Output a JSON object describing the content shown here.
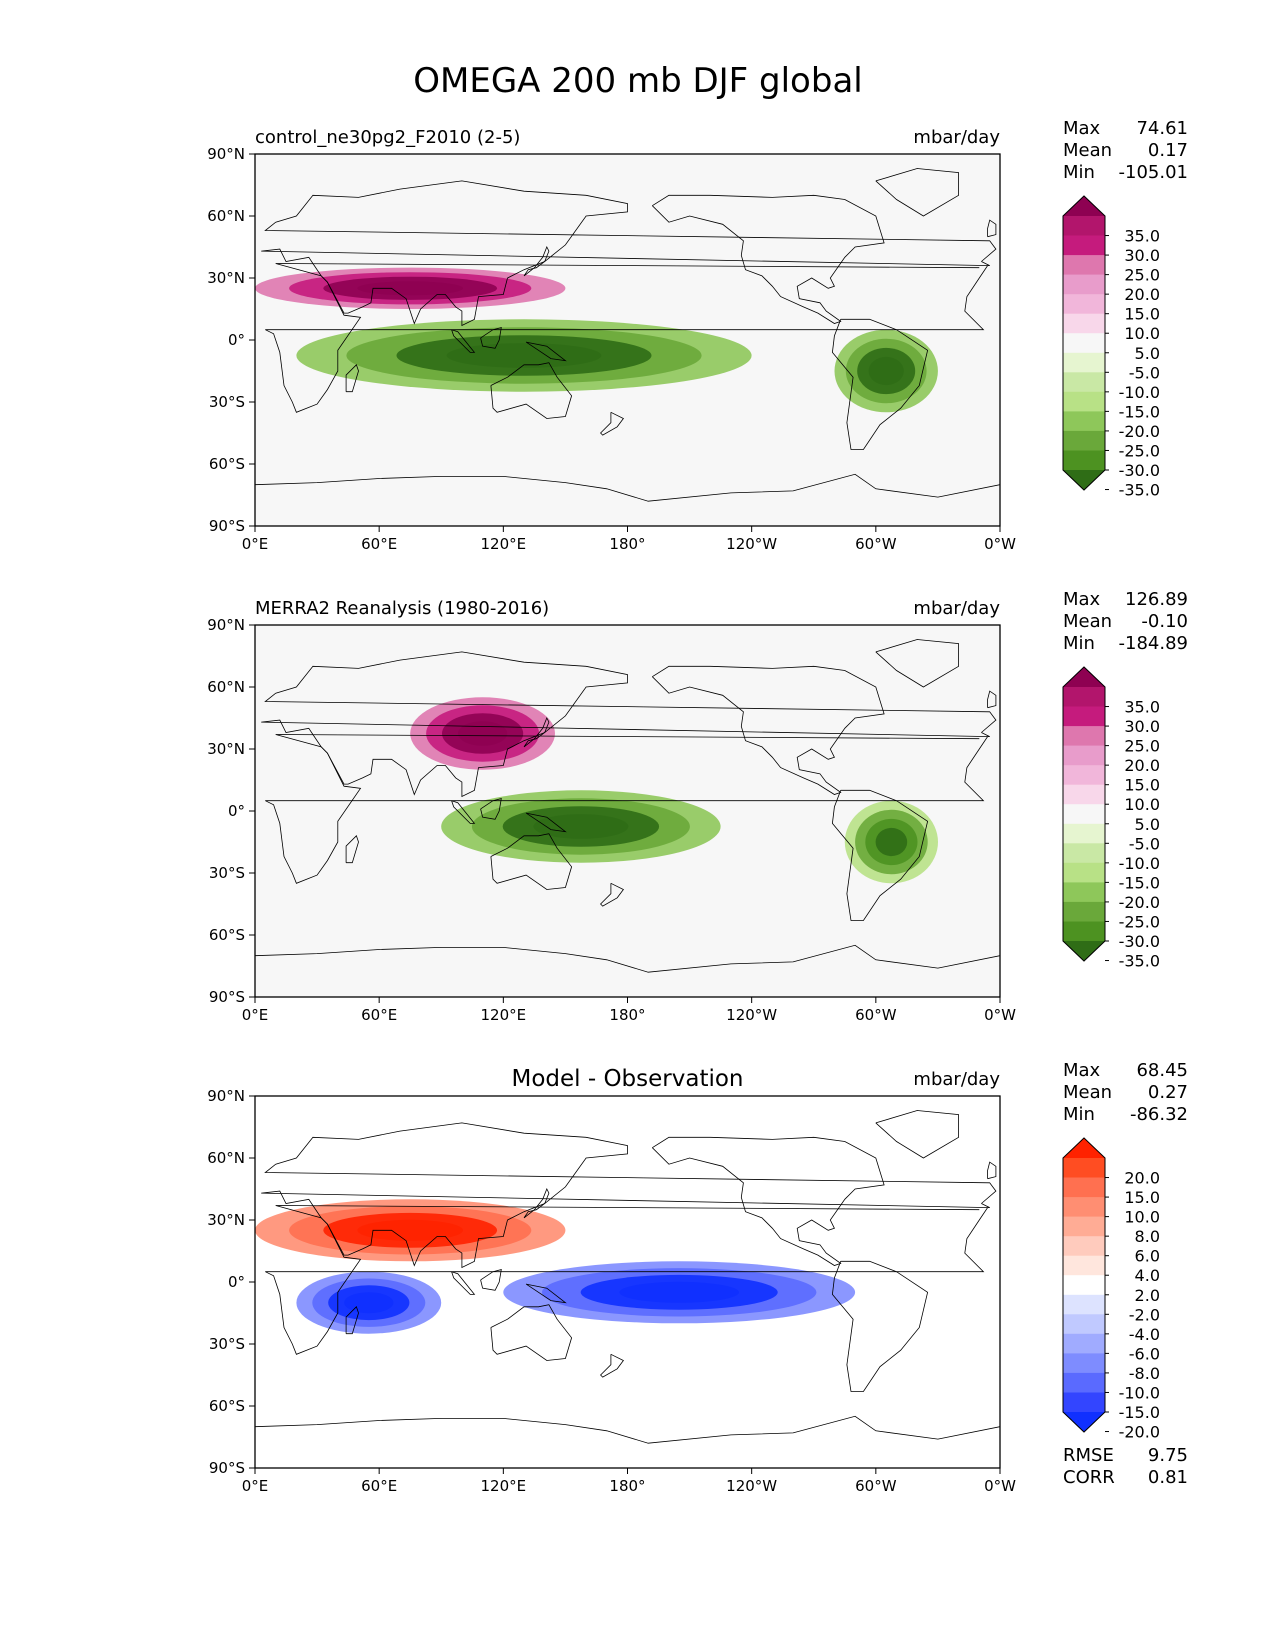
{
  "title": "OMEGA 200 mb DJF global",
  "x_ticks": [
    "0°E",
    "60°E",
    "120°E",
    "180°",
    "120°W",
    "60°W",
    "0°W"
  ],
  "y_ticks": [
    "90°N",
    "60°N",
    "30°N",
    "0°",
    "30°S",
    "60°S",
    "90°S"
  ],
  "colors": {
    "land_outline": "#000000",
    "background": "#f7f7f7"
  },
  "chart_data": [
    {
      "type": "heatmap",
      "title": "control_ne30pg2_F2010 (2-5)",
      "title_position": "left",
      "units": "mbar/day",
      "xlim": [
        0,
        360
      ],
      "ylim": [
        -90,
        90
      ],
      "stats": [
        {
          "label": "Max",
          "value": "74.61"
        },
        {
          "label": "Mean",
          "value": "0.17"
        },
        {
          "label": "Min",
          "value": "-105.01"
        }
      ],
      "colorbar": {
        "levels": [
          "35.0",
          "30.0",
          "25.0",
          "20.0",
          "15.0",
          "10.0",
          "5.0",
          "-5.0",
          "-10.0",
          "-15.0",
          "-20.0",
          "-25.0",
          "-30.0",
          "-35.0"
        ],
        "colors": [
          "#8e0152",
          "#b2156c",
          "#c51b7d",
          "#de77ae",
          "#e89ccb",
          "#f1b6da",
          "#f8d7ea",
          "#f7f7f7",
          "#e6f5d0",
          "#c9e8a5",
          "#b8e186",
          "#8ec75a",
          "#6aa83a",
          "#4d9221",
          "#2f6d16"
        ]
      },
      "features": [
        {
          "label": "subtropical jet descent band",
          "sign": "positive",
          "lon_range": [
            0,
            150
          ],
          "lat_range": [
            15,
            35
          ],
          "level": 35
        },
        {
          "label": "ITCZ ascent band",
          "sign": "negative",
          "lon_range": [
            20,
            240
          ],
          "lat_range": [
            -25,
            10
          ],
          "level": -35
        },
        {
          "label": "South America ascent",
          "sign": "negative",
          "lon_range": [
            280,
            330
          ],
          "lat_range": [
            -35,
            5
          ],
          "level": -35
        }
      ]
    },
    {
      "type": "heatmap",
      "title": "MERRA2 Reanalysis (1980-2016)",
      "title_position": "left",
      "units": "mbar/day",
      "xlim": [
        0,
        360
      ],
      "ylim": [
        -90,
        90
      ],
      "stats": [
        {
          "label": "Max",
          "value": "126.89"
        },
        {
          "label": "Mean",
          "value": "-0.10"
        },
        {
          "label": "Min",
          "value": "-184.89"
        }
      ],
      "colorbar": {
        "levels": [
          "35.0",
          "30.0",
          "25.0",
          "20.0",
          "15.0",
          "10.0",
          "5.0",
          "-5.0",
          "-10.0",
          "-15.0",
          "-20.0",
          "-25.0",
          "-30.0",
          "-35.0"
        ],
        "colors": [
          "#8e0152",
          "#b2156c",
          "#c51b7d",
          "#de77ae",
          "#e89ccb",
          "#f1b6da",
          "#f8d7ea",
          "#f7f7f7",
          "#e6f5d0",
          "#c9e8a5",
          "#b8e186",
          "#8ec75a",
          "#6aa83a",
          "#4d9221",
          "#2f6d16"
        ]
      },
      "features": [
        {
          "label": "Tibetan plateau descent",
          "sign": "positive",
          "lon_range": [
            75,
            145
          ],
          "lat_range": [
            20,
            55
          ],
          "level": 35
        },
        {
          "label": "Maritime continent ascent",
          "sign": "negative",
          "lon_range": [
            90,
            225
          ],
          "lat_range": [
            -25,
            10
          ],
          "level": -35
        },
        {
          "label": "South America ascent",
          "sign": "negative",
          "lon_range": [
            285,
            330
          ],
          "lat_range": [
            -35,
            5
          ],
          "level": -30
        }
      ]
    },
    {
      "type": "heatmap",
      "title": "Model - Observation",
      "title_position": "center",
      "units": "mbar/day",
      "xlim": [
        0,
        360
      ],
      "ylim": [
        -90,
        90
      ],
      "stats": [
        {
          "label": "Max",
          "value": "68.45"
        },
        {
          "label": "Mean",
          "value": "0.27"
        },
        {
          "label": "Min",
          "value": "-86.32"
        }
      ],
      "metrics": [
        {
          "label": "RMSE",
          "value": "9.75"
        },
        {
          "label": "CORR",
          "value": "0.81"
        }
      ],
      "colorbar": {
        "levels": [
          "20.0",
          "15.0",
          "10.0",
          "8.0",
          "6.0",
          "4.0",
          "2.0",
          "-2.0",
          "-4.0",
          "-6.0",
          "-8.0",
          "-10.0",
          "-15.0",
          "-20.0"
        ],
        "colors": [
          "#ff2200",
          "#ff4d22",
          "#ff7050",
          "#ff8e72",
          "#ffac95",
          "#ffcbbd",
          "#ffe6dd",
          "#ffffff",
          "#dde3ff",
          "#c0c9ff",
          "#a0abff",
          "#7e8cff",
          "#5a6aff",
          "#3345ff",
          "#1030ff"
        ]
      },
      "features": [
        {
          "label": "positive bias northern subtropics",
          "sign": "positive",
          "lon_range": [
            0,
            150
          ],
          "lat_range": [
            10,
            40
          ],
          "level": 20
        },
        {
          "label": "negative bias Indian Ocean",
          "sign": "negative",
          "lon_range": [
            20,
            90
          ],
          "lat_range": [
            -25,
            5
          ],
          "level": -20
        },
        {
          "label": "negative bias tropical Pacific",
          "sign": "negative",
          "lon_range": [
            120,
            290
          ],
          "lat_range": [
            -20,
            10
          ],
          "level": -20
        }
      ]
    }
  ]
}
